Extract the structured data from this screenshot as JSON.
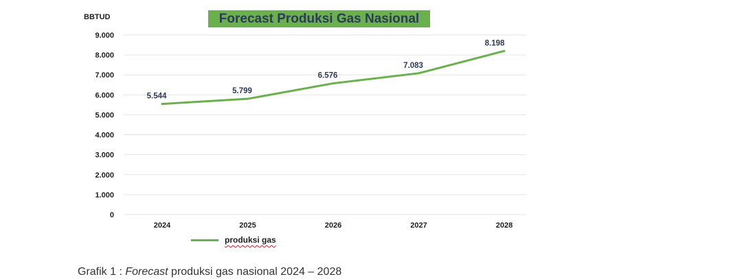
{
  "chart_data": {
    "type": "line",
    "title": "Forecast Produksi Gas Nasional",
    "unit_label": "BBTUD",
    "categories": [
      "2024",
      "2025",
      "2026",
      "2027",
      "2028"
    ],
    "series": [
      {
        "name": "produksi gas",
        "values": [
          5544,
          5799,
          6576,
          7083,
          8198
        ],
        "color": "#6ab04c"
      }
    ],
    "data_labels": [
      "5.544",
      "5.799",
      "6.576",
      "7.083",
      "8.198"
    ],
    "y_ticks": [
      0,
      1000,
      2000,
      3000,
      4000,
      5000,
      6000,
      7000,
      8000,
      9000
    ],
    "y_tick_labels": [
      "0",
      "1.000",
      "2.000",
      "3.000",
      "4.000",
      "5.000",
      "6.000",
      "7.000",
      "8.000",
      "9.000"
    ],
    "ylim": [
      0,
      9000
    ],
    "grid": true,
    "legend_position": "bottom-left",
    "colors": {
      "line": "#6ab04c",
      "title_bg": "#6ab04c",
      "title_text": "#2e3a5c",
      "data_label": "#2e3a5c",
      "grid": "#e6e6e6"
    }
  },
  "caption": {
    "prefix": "Grafik 1 : ",
    "italic": "Forecast",
    "suffix": " produksi gas nasional 2024 – 2028"
  }
}
